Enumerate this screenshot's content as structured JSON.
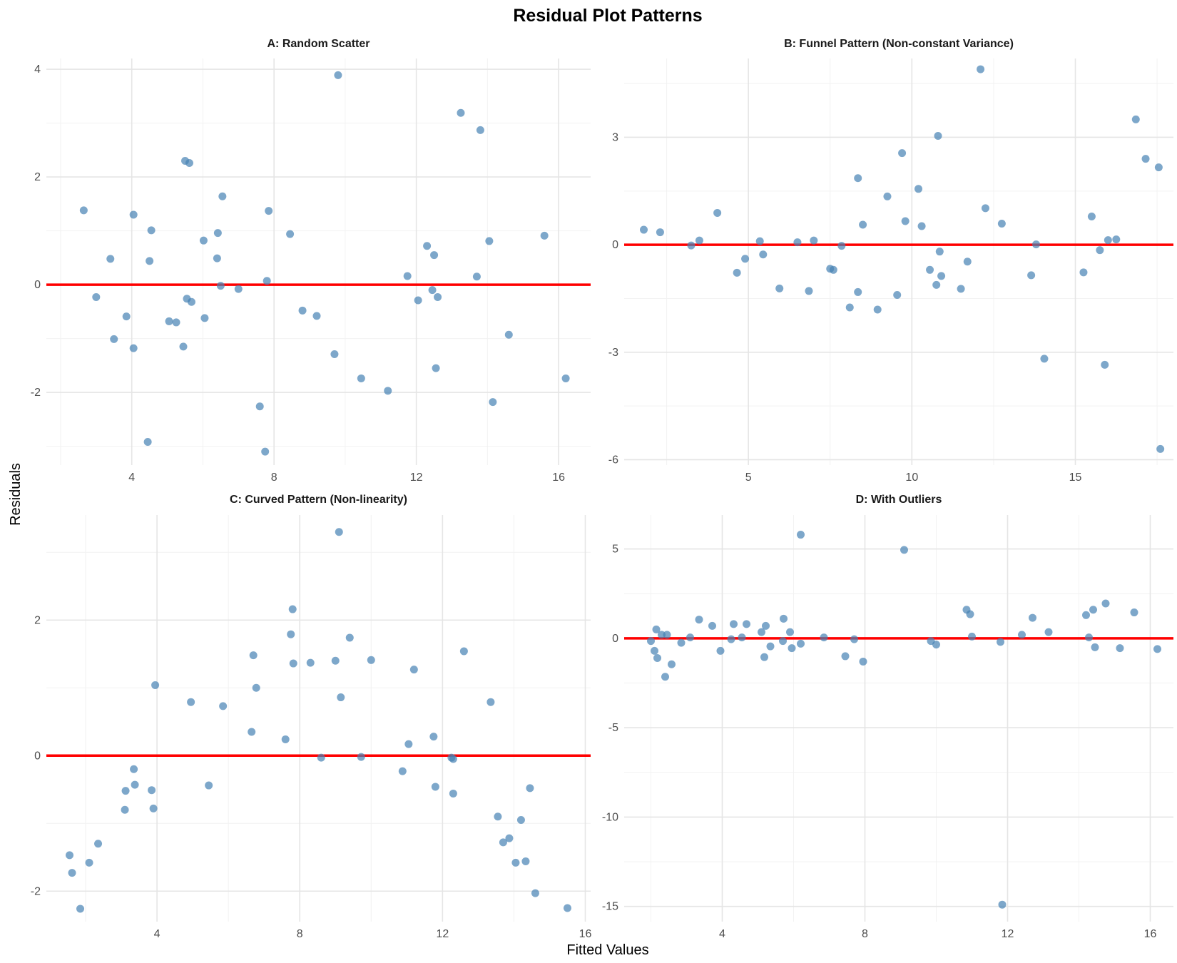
{
  "title": "Residual Plot Patterns",
  "xlabel": "Fitted Values",
  "ylabel": "Residuals",
  "colors": {
    "points": "#4682B4",
    "reference_line": "#FF0000"
  },
  "chart_data": [
    {
      "type": "scatter",
      "title": "A: Random Scatter",
      "xlim": [
        1.6,
        16.9
      ],
      "ylim": [
        -3.35,
        4.2
      ],
      "xticks": [
        4,
        8,
        12,
        16
      ],
      "xtick_labels": [
        "4",
        "8",
        "12",
        "16"
      ],
      "yticks": [
        -2,
        0,
        2,
        4
      ],
      "ytick_labels": [
        "-2",
        "0",
        "2",
        "4"
      ],
      "hline": 0,
      "points": [
        {
          "x": 2.65,
          "y": 1.38
        },
        {
          "x": 3.0,
          "y": -0.23
        },
        {
          "x": 3.4,
          "y": 0.48
        },
        {
          "x": 3.5,
          "y": -1.01
        },
        {
          "x": 3.85,
          "y": -0.59
        },
        {
          "x": 4.05,
          "y": 1.3
        },
        {
          "x": 4.05,
          "y": -1.18
        },
        {
          "x": 4.45,
          "y": -2.92
        },
        {
          "x": 4.5,
          "y": 0.44
        },
        {
          "x": 4.55,
          "y": 1.01
        },
        {
          "x": 5.05,
          "y": -0.68
        },
        {
          "x": 5.25,
          "y": -0.7
        },
        {
          "x": 5.45,
          "y": -1.15
        },
        {
          "x": 5.5,
          "y": 2.3
        },
        {
          "x": 5.55,
          "y": -0.26
        },
        {
          "x": 5.62,
          "y": 2.26
        },
        {
          "x": 5.68,
          "y": -0.32
        },
        {
          "x": 6.02,
          "y": 0.82
        },
        {
          "x": 6.05,
          "y": -0.62
        },
        {
          "x": 6.4,
          "y": 0.49
        },
        {
          "x": 6.42,
          "y": 0.96
        },
        {
          "x": 6.5,
          "y": -0.02
        },
        {
          "x": 6.55,
          "y": 1.64
        },
        {
          "x": 7.0,
          "y": -0.08
        },
        {
          "x": 7.6,
          "y": -2.26
        },
        {
          "x": 7.75,
          "y": -3.1
        },
        {
          "x": 7.8,
          "y": 0.07
        },
        {
          "x": 7.85,
          "y": 1.37
        },
        {
          "x": 8.45,
          "y": 0.94
        },
        {
          "x": 8.8,
          "y": -0.48
        },
        {
          "x": 9.2,
          "y": -0.58
        },
        {
          "x": 9.7,
          "y": -1.29
        },
        {
          "x": 9.8,
          "y": 3.89
        },
        {
          "x": 10.45,
          "y": -1.74
        },
        {
          "x": 11.2,
          "y": -1.97
        },
        {
          "x": 11.75,
          "y": 0.16
        },
        {
          "x": 12.05,
          "y": -0.29
        },
        {
          "x": 12.3,
          "y": 0.72
        },
        {
          "x": 12.45,
          "y": -0.1
        },
        {
          "x": 12.5,
          "y": 0.55
        },
        {
          "x": 12.55,
          "y": -1.55
        },
        {
          "x": 12.6,
          "y": -0.23
        },
        {
          "x": 13.25,
          "y": 3.19
        },
        {
          "x": 13.7,
          "y": 0.15
        },
        {
          "x": 13.8,
          "y": 2.87
        },
        {
          "x": 14.05,
          "y": 0.81
        },
        {
          "x": 14.15,
          "y": -2.18
        },
        {
          "x": 14.6,
          "y": -0.93
        },
        {
          "x": 15.6,
          "y": 0.91
        },
        {
          "x": 16.2,
          "y": -1.74
        }
      ]
    },
    {
      "type": "scatter",
      "title": "B: Funnel Pattern (Non-constant Variance)",
      "xlim": [
        1.2,
        18.0
      ],
      "ylim": [
        -6.15,
        5.2
      ],
      "xticks": [
        5,
        10,
        15
      ],
      "xtick_labels": [
        "5",
        "10",
        "15"
      ],
      "yticks": [
        -6,
        -3,
        0,
        3
      ],
      "ytick_labels": [
        "-6",
        "-3",
        "0",
        "3"
      ],
      "hline": 0,
      "points": [
        {
          "x": 1.8,
          "y": 0.42
        },
        {
          "x": 2.3,
          "y": 0.35
        },
        {
          "x": 3.25,
          "y": -0.02
        },
        {
          "x": 3.5,
          "y": 0.12
        },
        {
          "x": 4.05,
          "y": 0.89
        },
        {
          "x": 4.65,
          "y": -0.78
        },
        {
          "x": 4.9,
          "y": -0.39
        },
        {
          "x": 5.35,
          "y": 0.1
        },
        {
          "x": 5.45,
          "y": -0.27
        },
        {
          "x": 5.95,
          "y": -1.22
        },
        {
          "x": 6.5,
          "y": 0.07
        },
        {
          "x": 6.85,
          "y": -1.29
        },
        {
          "x": 7.0,
          "y": 0.12
        },
        {
          "x": 7.5,
          "y": -0.67
        },
        {
          "x": 7.6,
          "y": -0.7
        },
        {
          "x": 7.85,
          "y": -0.03
        },
        {
          "x": 8.1,
          "y": -1.75
        },
        {
          "x": 8.35,
          "y": 1.86
        },
        {
          "x": 8.35,
          "y": -1.32
        },
        {
          "x": 8.5,
          "y": 0.56
        },
        {
          "x": 8.95,
          "y": -1.81
        },
        {
          "x": 9.25,
          "y": 1.35
        },
        {
          "x": 9.55,
          "y": -1.4
        },
        {
          "x": 9.7,
          "y": 2.56
        },
        {
          "x": 9.8,
          "y": 0.66
        },
        {
          "x": 10.2,
          "y": 1.56
        },
        {
          "x": 10.3,
          "y": 0.52
        },
        {
          "x": 10.55,
          "y": -0.7
        },
        {
          "x": 10.75,
          "y": -1.12
        },
        {
          "x": 10.8,
          "y": 3.04
        },
        {
          "x": 10.85,
          "y": -0.19
        },
        {
          "x": 10.9,
          "y": -0.87
        },
        {
          "x": 11.5,
          "y": -1.23
        },
        {
          "x": 11.7,
          "y": -0.47
        },
        {
          "x": 12.1,
          "y": 4.9
        },
        {
          "x": 12.25,
          "y": 1.02
        },
        {
          "x": 12.75,
          "y": 0.59
        },
        {
          "x": 13.65,
          "y": -0.85
        },
        {
          "x": 13.8,
          "y": 0.01
        },
        {
          "x": 14.05,
          "y": -3.18
        },
        {
          "x": 15.25,
          "y": -0.77
        },
        {
          "x": 15.5,
          "y": 0.79
        },
        {
          "x": 15.75,
          "y": -0.15
        },
        {
          "x": 15.9,
          "y": -3.35
        },
        {
          "x": 16.0,
          "y": 0.13
        },
        {
          "x": 16.25,
          "y": 0.15
        },
        {
          "x": 16.85,
          "y": 3.5
        },
        {
          "x": 17.15,
          "y": 2.4
        },
        {
          "x": 17.55,
          "y": 2.16
        },
        {
          "x": 17.6,
          "y": -5.7
        }
      ]
    },
    {
      "type": "scatter",
      "title": "C: Curved Pattern (Non-linearity)",
      "xlim": [
        0.9,
        16.15
      ],
      "ylim": [
        -2.45,
        3.55
      ],
      "xticks": [
        4,
        8,
        12,
        16
      ],
      "xtick_labels": [
        "4",
        "8",
        "12",
        "16"
      ],
      "yticks": [
        -2,
        0,
        2
      ],
      "ytick_labels": [
        "-2",
        "0",
        "2"
      ],
      "hline": 0,
      "points": [
        {
          "x": 1.55,
          "y": -1.47
        },
        {
          "x": 1.62,
          "y": -1.73
        },
        {
          "x": 1.85,
          "y": -2.26
        },
        {
          "x": 2.1,
          "y": -1.58
        },
        {
          "x": 2.35,
          "y": -1.3
        },
        {
          "x": 3.1,
          "y": -0.8
        },
        {
          "x": 3.12,
          "y": -0.52
        },
        {
          "x": 3.35,
          "y": -0.2
        },
        {
          "x": 3.38,
          "y": -0.43
        },
        {
          "x": 3.85,
          "y": -0.51
        },
        {
          "x": 3.9,
          "y": -0.78
        },
        {
          "x": 3.95,
          "y": 1.04
        },
        {
          "x": 4.95,
          "y": 0.79
        },
        {
          "x": 5.45,
          "y": -0.44
        },
        {
          "x": 5.85,
          "y": 0.73
        },
        {
          "x": 6.65,
          "y": 0.35
        },
        {
          "x": 6.7,
          "y": 1.48
        },
        {
          "x": 6.78,
          "y": 1.0
        },
        {
          "x": 7.6,
          "y": 0.24
        },
        {
          "x": 7.75,
          "y": 1.79
        },
        {
          "x": 7.8,
          "y": 2.16
        },
        {
          "x": 7.82,
          "y": 1.36
        },
        {
          "x": 8.3,
          "y": 1.37
        },
        {
          "x": 8.6,
          "y": -0.03
        },
        {
          "x": 9.0,
          "y": 1.4
        },
        {
          "x": 9.1,
          "y": 3.3
        },
        {
          "x": 9.15,
          "y": 0.86
        },
        {
          "x": 9.4,
          "y": 1.74
        },
        {
          "x": 9.72,
          "y": -0.02
        },
        {
          "x": 10.0,
          "y": 1.41
        },
        {
          "x": 10.88,
          "y": -0.23
        },
        {
          "x": 11.05,
          "y": 0.17
        },
        {
          "x": 11.2,
          "y": 1.27
        },
        {
          "x": 11.75,
          "y": 0.28
        },
        {
          "x": 11.8,
          "y": -0.46
        },
        {
          "x": 12.25,
          "y": -0.03
        },
        {
          "x": 12.3,
          "y": -0.05
        },
        {
          "x": 12.3,
          "y": -0.56
        },
        {
          "x": 12.6,
          "y": 1.54
        },
        {
          "x": 13.35,
          "y": 0.79
        },
        {
          "x": 13.55,
          "y": -0.9
        },
        {
          "x": 13.7,
          "y": -1.28
        },
        {
          "x": 13.87,
          "y": -1.22
        },
        {
          "x": 14.05,
          "y": -1.58
        },
        {
          "x": 14.2,
          "y": -0.95
        },
        {
          "x": 14.33,
          "y": -1.56
        },
        {
          "x": 14.45,
          "y": -0.48
        },
        {
          "x": 14.6,
          "y": -2.03
        },
        {
          "x": 15.5,
          "y": -2.25
        }
      ]
    },
    {
      "type": "scatter",
      "title": "D: With Outliers",
      "xlim": [
        1.25,
        16.65
      ],
      "ylim": [
        -15.85,
        6.9
      ],
      "xticks": [
        4,
        8,
        12,
        16
      ],
      "xtick_labels": [
        "4",
        "8",
        "12",
        "16"
      ],
      "yticks": [
        -15,
        -10,
        -5,
        0,
        5
      ],
      "ytick_labels": [
        "-15",
        "-10",
        "-5",
        "0",
        "5"
      ],
      "hline": 0,
      "points": [
        {
          "x": 2.0,
          "y": -0.15
        },
        {
          "x": 2.1,
          "y": -0.7
        },
        {
          "x": 2.15,
          "y": 0.5
        },
        {
          "x": 2.18,
          "y": -1.1
        },
        {
          "x": 2.3,
          "y": 0.2
        },
        {
          "x": 2.4,
          "y": -2.15
        },
        {
          "x": 2.45,
          "y": 0.2
        },
        {
          "x": 2.58,
          "y": -1.45
        },
        {
          "x": 2.85,
          "y": -0.25
        },
        {
          "x": 3.1,
          "y": 0.05
        },
        {
          "x": 3.35,
          "y": 1.05
        },
        {
          "x": 3.72,
          "y": 0.7
        },
        {
          "x": 3.95,
          "y": -0.7
        },
        {
          "x": 4.25,
          "y": -0.05
        },
        {
          "x": 4.32,
          "y": 0.8
        },
        {
          "x": 4.55,
          "y": 0.05
        },
        {
          "x": 4.68,
          "y": 0.8
        },
        {
          "x": 5.1,
          "y": 0.35
        },
        {
          "x": 5.18,
          "y": -1.05
        },
        {
          "x": 5.22,
          "y": 0.7
        },
        {
          "x": 5.35,
          "y": -0.45
        },
        {
          "x": 5.7,
          "y": -0.15
        },
        {
          "x": 5.72,
          "y": 1.1
        },
        {
          "x": 5.9,
          "y": 0.35
        },
        {
          "x": 5.95,
          "y": -0.55
        },
        {
          "x": 6.2,
          "y": 5.8
        },
        {
          "x": 6.2,
          "y": -0.3
        },
        {
          "x": 6.85,
          "y": 0.05
        },
        {
          "x": 7.45,
          "y": -1.0
        },
        {
          "x": 7.7,
          "y": -0.05
        },
        {
          "x": 7.95,
          "y": -1.3
        },
        {
          "x": 9.1,
          "y": 4.95
        },
        {
          "x": 9.85,
          "y": -0.15
        },
        {
          "x": 10.0,
          "y": -0.35
        },
        {
          "x": 10.85,
          "y": 1.6
        },
        {
          "x": 10.95,
          "y": 1.35
        },
        {
          "x": 11.0,
          "y": 0.1
        },
        {
          "x": 11.8,
          "y": -0.2
        },
        {
          "x": 11.85,
          "y": -14.9
        },
        {
          "x": 12.4,
          "y": 0.2
        },
        {
          "x": 12.7,
          "y": 1.15
        },
        {
          "x": 13.15,
          "y": 0.35
        },
        {
          "x": 14.2,
          "y": 1.3
        },
        {
          "x": 14.28,
          "y": 0.05
        },
        {
          "x": 14.4,
          "y": 1.6
        },
        {
          "x": 14.45,
          "y": -0.5
        },
        {
          "x": 14.75,
          "y": 1.95
        },
        {
          "x": 15.15,
          "y": -0.55
        },
        {
          "x": 15.55,
          "y": 1.45
        },
        {
          "x": 16.2,
          "y": -0.6
        }
      ]
    }
  ]
}
